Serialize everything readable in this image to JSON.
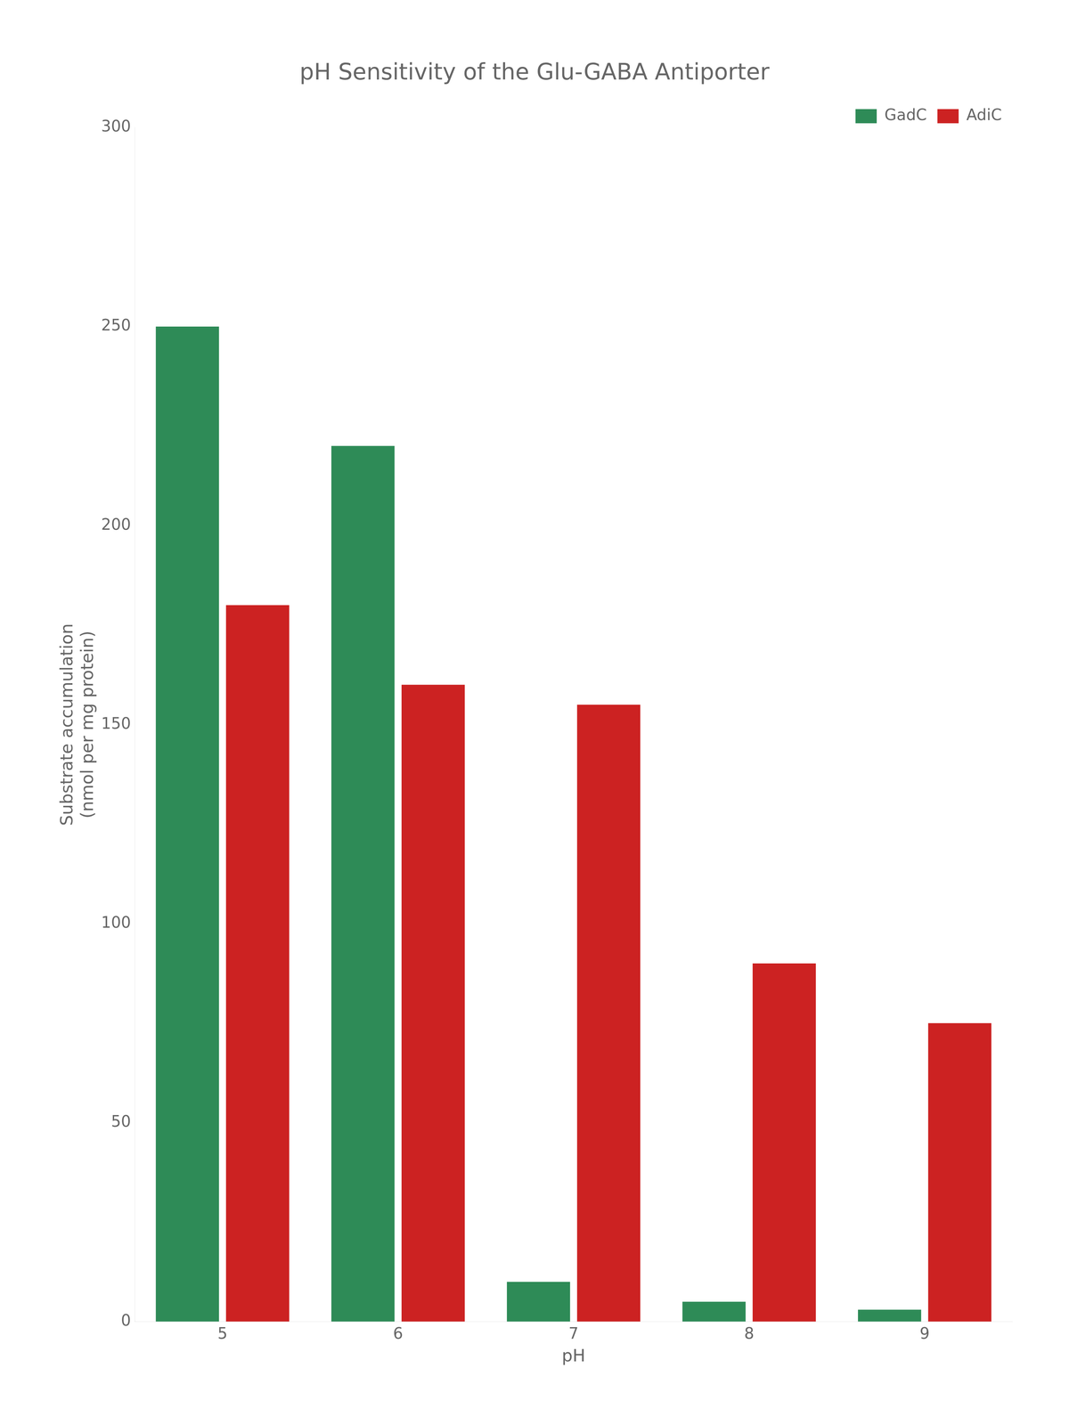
{
  "chart_data": {
    "type": "bar",
    "title": "pH Sensitivity of the Glu-GABA Antiporter",
    "xlabel": "pH",
    "ylabel": "Substrate accumulation\n(nmol per mg protein)",
    "categories": [
      "5",
      "6",
      "7",
      "8",
      "9"
    ],
    "series": [
      {
        "name": "GadC",
        "color": "#2e8b57",
        "values": [
          250,
          220,
          10,
          5,
          3
        ]
      },
      {
        "name": "AdiC",
        "color": "#cc2222",
        "values": [
          180,
          160,
          155,
          90,
          75
        ]
      }
    ],
    "ylim": [
      0,
      300
    ],
    "yticks": [
      0,
      50,
      100,
      150,
      200,
      250,
      300
    ],
    "grid": false,
    "legend": "upper right"
  }
}
